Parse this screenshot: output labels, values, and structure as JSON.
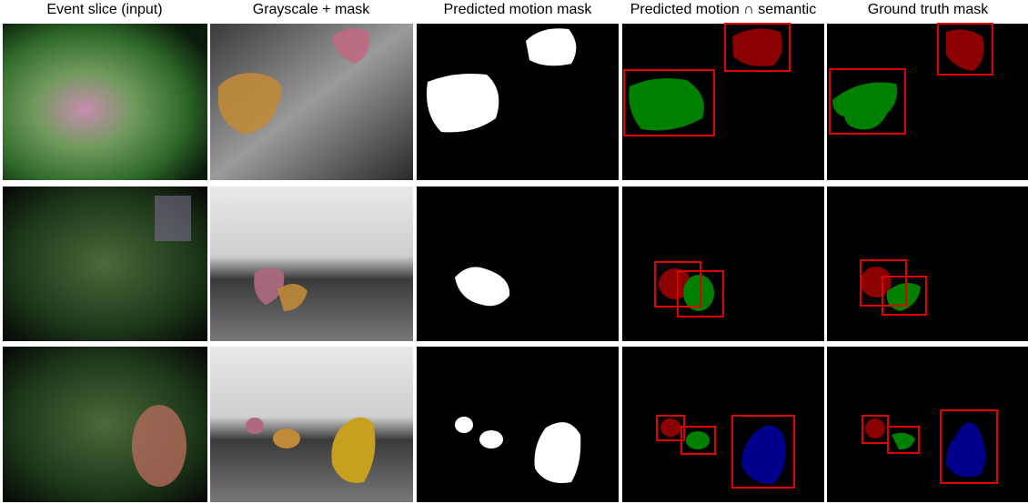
{
  "columns": [
    "Event slice (input)",
    "Grayscale + mask",
    "Predicted motion mask",
    "Predicted motion ∩ semantic",
    "Ground truth mask"
  ]
}
